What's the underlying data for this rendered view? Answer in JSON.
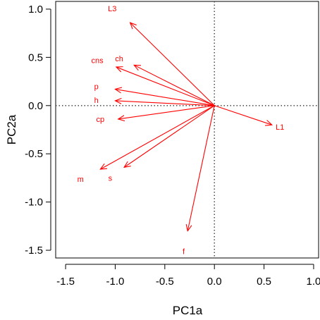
{
  "chart_data": {
    "type": "scatter",
    "subtype": "biplot-vectors",
    "title": "",
    "xlabel": "PC1a",
    "ylabel": "PC2a",
    "xlim": [
      -1.6,
      1.05
    ],
    "ylim": [
      -1.58,
      1.08
    ],
    "x_ticks": [
      -1.5,
      -1.0,
      -0.5,
      0.0,
      0.5,
      1.0
    ],
    "y_ticks": [
      -1.5,
      -1.0,
      -0.5,
      0.0,
      0.5,
      1.0
    ],
    "x_tick_labels": [
      "-1.5",
      "-1.0",
      "-0.5",
      "0.0",
      "0.5",
      "1.0"
    ],
    "y_tick_labels": [
      "-1.5",
      "-1.0",
      "-0.5",
      "0.0",
      "0.5",
      "1.0"
    ],
    "reference_lines": {
      "x": 0,
      "y": 0,
      "style": "dotted"
    },
    "grid": false,
    "vector_color": "#ff0000",
    "vectors": [
      {
        "label": "L3",
        "x": -0.85,
        "y": 0.86,
        "label_x": -1.03,
        "label_y": 1.0
      },
      {
        "label": "ch",
        "x": -0.81,
        "y": 0.42,
        "label_x": -0.96,
        "label_y": 0.48
      },
      {
        "label": "cns",
        "x": -0.99,
        "y": 0.4,
        "label_x": -1.18,
        "label_y": 0.46
      },
      {
        "label": "p",
        "x": -1.0,
        "y": 0.17,
        "label_x": -1.19,
        "label_y": 0.19
      },
      {
        "label": "h",
        "x": -1.0,
        "y": 0.05,
        "label_x": -1.19,
        "label_y": 0.05
      },
      {
        "label": "cp",
        "x": -0.97,
        "y": -0.14,
        "label_x": -1.15,
        "label_y": -0.15
      },
      {
        "label": "s",
        "x": -0.91,
        "y": -0.64,
        "label_x": -1.05,
        "label_y": -0.76
      },
      {
        "label": "m",
        "x": -1.15,
        "y": -0.66,
        "label_x": -1.35,
        "label_y": -0.77
      },
      {
        "label": "f",
        "x": -0.27,
        "y": -1.3,
        "label_x": -0.31,
        "label_y": -1.52
      },
      {
        "label": "L1",
        "x": 0.58,
        "y": -0.2,
        "label_x": 0.66,
        "label_y": -0.23
      }
    ]
  }
}
